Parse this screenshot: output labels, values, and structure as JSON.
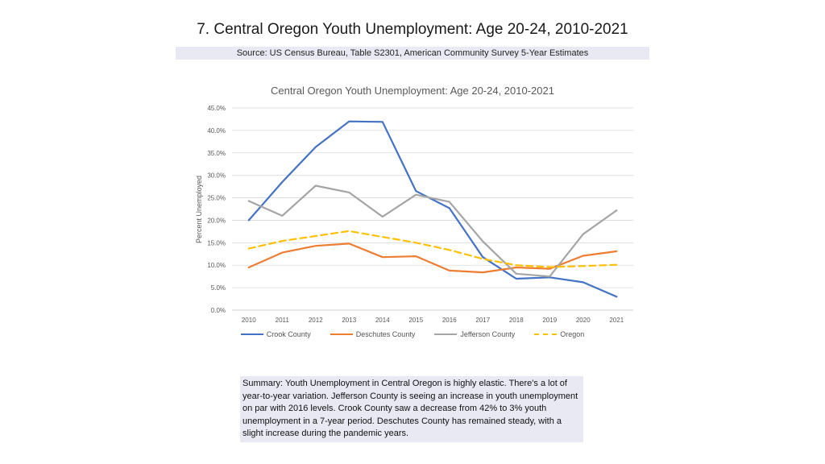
{
  "slide": {
    "title": "7. Central Oregon Youth Unemployment: Age 20-24, 2010-2021",
    "source": "Source: US Census Bureau, Table S2301, American Community Survey 5-Year Estimates",
    "summary": "Summary: Youth Unemployment in Central Oregon is highly elastic. There's a lot of year-to-year variation. Jefferson County is seeing an increase in youth unemployment on par with 2016 levels. Crook County saw a decrease from 42% to 3% youth unemployment in a 7-year period. Deschutes County has remained steady, with a slight increase during the pandemic years."
  },
  "chart_data": {
    "type": "line",
    "title": "Central Oregon Youth Unemployment: Age 20-24, 2010-2021",
    "xlabel": "",
    "ylabel": "Percent Unemployed",
    "ylim": [
      0,
      45
    ],
    "yticks": [
      "0.0%",
      "5.0%",
      "10.0%",
      "15.0%",
      "20.0%",
      "25.0%",
      "30.0%",
      "35.0%",
      "40.0%",
      "45.0%"
    ],
    "categories": [
      "2010",
      "2011",
      "2012",
      "2013",
      "2014",
      "2015",
      "2016",
      "2017",
      "2018",
      "2019",
      "2020",
      "2021"
    ],
    "grid": true,
    "legend_position": "bottom",
    "series": [
      {
        "name": "Crook County",
        "color": "#4472c4",
        "dashed": false,
        "values": [
          20.0,
          28.5,
          36.3,
          42.0,
          41.9,
          26.5,
          22.7,
          11.8,
          7.0,
          7.3,
          6.2,
          3.0
        ]
      },
      {
        "name": "Deschutes County",
        "color": "#ed7d31",
        "dashed": false,
        "values": [
          9.5,
          12.8,
          14.3,
          14.8,
          11.8,
          12.0,
          8.8,
          8.4,
          9.5,
          9.2,
          12.1,
          13.1
        ]
      },
      {
        "name": "Jefferson County",
        "color": "#a5a5a5",
        "dashed": false,
        "values": [
          24.3,
          21.0,
          27.7,
          26.2,
          20.8,
          25.7,
          24.1,
          15.3,
          8.1,
          7.5,
          16.9,
          22.2
        ]
      },
      {
        "name": "Oregon",
        "color": "#ffc000",
        "dashed": true,
        "values": [
          13.7,
          15.4,
          16.5,
          17.6,
          16.3,
          15.0,
          13.4,
          11.4,
          10.0,
          9.6,
          9.8,
          10.1
        ]
      }
    ]
  }
}
